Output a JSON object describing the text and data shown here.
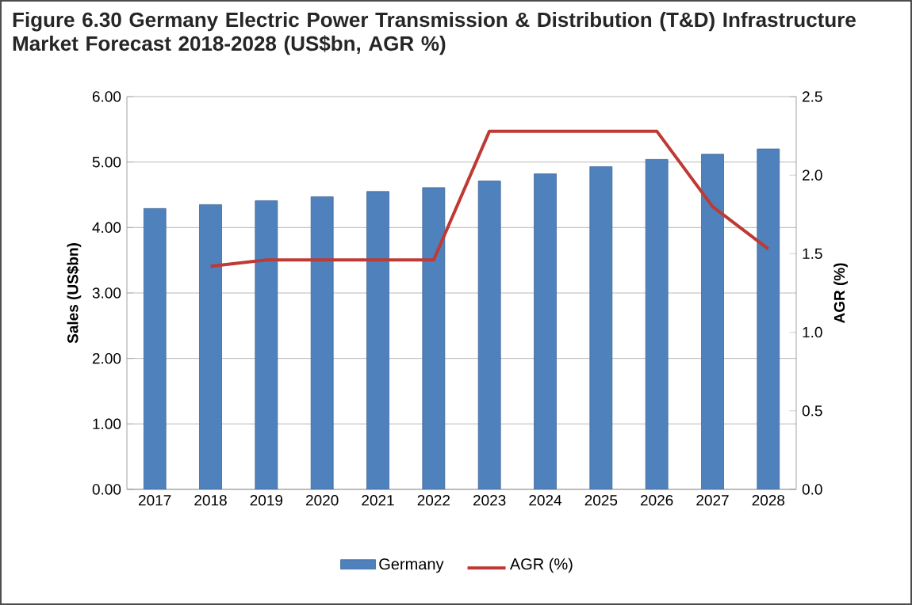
{
  "chart_data": {
    "type": "bar",
    "title": "Figure 6.30 Germany Electric Power Transmission & Distribution (T&D) Infrastructure Market Forecast 2018-2028 (US$bn, AGR %)",
    "categories": [
      "2017",
      "2018",
      "2019",
      "2020",
      "2021",
      "2022",
      "2023",
      "2024",
      "2025",
      "2026",
      "2027",
      "2028"
    ],
    "series": [
      {
        "name": "Germany",
        "color": "#4f81bd",
        "values": [
          4.29,
          4.35,
          4.41,
          4.47,
          4.55,
          4.61,
          4.71,
          4.82,
          4.93,
          5.04,
          5.12,
          5.2
        ]
      },
      {
        "name": "AGR (%)",
        "type": "line",
        "axis": "y2",
        "color": "#be3a34",
        "values": [
          null,
          1.42,
          1.46,
          1.46,
          1.46,
          1.46,
          2.28,
          2.28,
          2.28,
          2.28,
          1.8,
          1.53
        ]
      }
    ],
    "ylabel": "Sales (US$bn)",
    "y2label": "AGR (%)",
    "ylim": [
      0,
      6
    ],
    "yticks": [
      {
        "value": 0,
        "label": "0.00"
      },
      {
        "value": 1,
        "label": "1.00"
      },
      {
        "value": 2,
        "label": "2.00"
      },
      {
        "value": 3,
        "label": "3.00"
      },
      {
        "value": 4,
        "label": "4.00"
      },
      {
        "value": 5,
        "label": "5.00"
      },
      {
        "value": 6,
        "label": "6.00"
      }
    ],
    "y2lim": [
      0,
      2.5
    ],
    "y2ticks": [
      {
        "value": 0,
        "label": "0.0"
      },
      {
        "value": 0.5,
        "label": "0.5"
      },
      {
        "value": 1,
        "label": "1.0"
      },
      {
        "value": 1.5,
        "label": "1.5"
      },
      {
        "value": 2,
        "label": "2.0"
      },
      {
        "value": 2.5,
        "label": "2.5"
      }
    ],
    "grid": "y",
    "legend": "bottom",
    "marker": "none",
    "line_style": "solid"
  }
}
